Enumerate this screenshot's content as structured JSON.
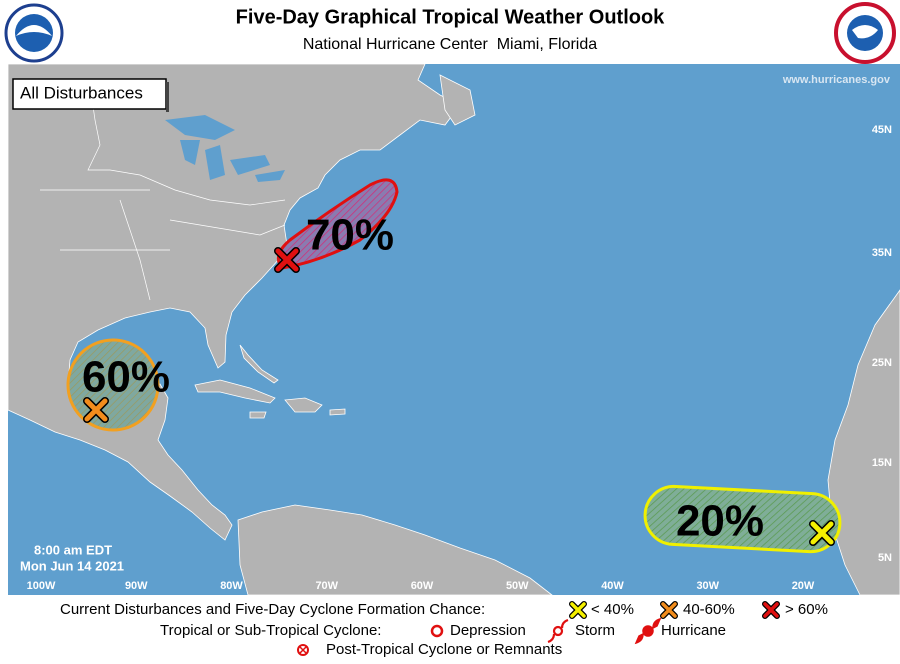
{
  "header": {
    "title": "Five-Day Graphical Tropical Weather Outlook",
    "subtitle": "National Hurricane Center  Miami, Florida"
  },
  "map": {
    "layer_button": "All Disturbances",
    "website": "www.hurricanes.gov",
    "timestamp": [
      "8:00 am EDT",
      "Mon Jun 14 2021"
    ],
    "latitude_labels": [
      "45N",
      "35N",
      "25N",
      "15N",
      "5N"
    ],
    "longitude_labels": [
      "100W",
      "90W",
      "80W",
      "70W",
      "60W",
      "50W",
      "40W",
      "30W",
      "20W"
    ],
    "disturbances": [
      {
        "chance": "70%"
      },
      {
        "chance": "60%"
      },
      {
        "chance": "20%"
      }
    ]
  },
  "legend": {
    "formation_heading": "Current Disturbances and Five-Day Cyclone Formation Chance:",
    "formation_levels": [
      "< 40%",
      "40-60%",
      "> 60%"
    ],
    "cyclone_heading": "Tropical or Sub-Tropical Cyclone:",
    "cyclone_types": [
      "Depression",
      "Storm",
      "Hurricane"
    ],
    "post_tropical": "Post-Tropical Cyclone or Remnants"
  }
}
